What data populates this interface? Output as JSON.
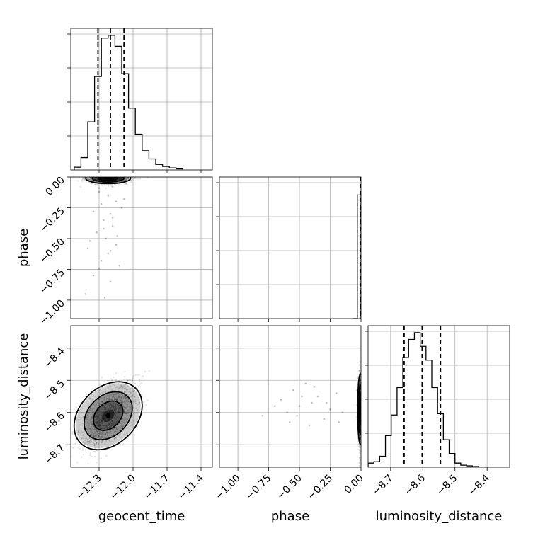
{
  "chart_data": {
    "type": "corner",
    "parameters": [
      "geocent_time",
      "phase",
      "luminosity_distance"
    ],
    "axis_labels": {
      "x": [
        "geocent_time",
        "phase",
        "luminosity_distance"
      ],
      "y": [
        "",
        "phase",
        "luminosity_distance"
      ]
    },
    "ranges": {
      "geocent_time": [
        -12.55,
        -11.3
      ],
      "phase": [
        -1.15,
        0.0
      ],
      "luminosity_distance": [
        -8.77,
        -8.33
      ]
    },
    "ticks": {
      "geocent_time": [
        -12.3,
        -12.0,
        -11.7,
        -11.4
      ],
      "phase": [
        -1.0,
        -0.75,
        -0.5,
        -0.25,
        0.0
      ],
      "luminosity_distance": [
        -8.7,
        -8.6,
        -8.5,
        -8.4
      ]
    },
    "tick_labels": {
      "geocent_time": [
        "−12.3",
        "−12.0",
        "−11.7",
        "−11.4"
      ],
      "phase": [
        "−1.00",
        "−0.75",
        "−0.50",
        "−0.25",
        "0.00"
      ],
      "phase_y": [
        "−1.00",
        "−0.75",
        "−0.50",
        "−0.25",
        "0.00"
      ],
      "luminosity_distance": [
        "−8.7",
        "−8.6",
        "−8.5",
        "−8.4"
      ]
    },
    "grid": true,
    "histograms": {
      "geocent_time": {
        "bin_edges": [
          -12.52,
          -12.46,
          -12.4,
          -12.34,
          -12.28,
          -12.22,
          -12.16,
          -12.1,
          -12.04,
          -11.98,
          -11.92,
          -11.86,
          -11.8,
          -11.74,
          -11.68,
          -11.62,
          -11.56
        ],
        "counts": [
          0.02,
          0.09,
          0.35,
          0.68,
          0.96,
          0.98,
          0.9,
          0.7,
          0.45,
          0.26,
          0.14,
          0.08,
          0.04,
          0.025,
          0.015,
          0.008
        ],
        "quantiles": [
          -12.31,
          -12.2,
          -12.08
        ]
      },
      "phase": {
        "bin_edges": [
          -0.065,
          -0.03,
          0.0
        ],
        "counts": [
          0.0,
          0.9
        ],
        "quantiles": [
          -0.005,
          -0.003,
          -0.001
        ]
      },
      "luminosity_distance": {
        "bin_edges": [
          -8.77,
          -8.752,
          -8.734,
          -8.716,
          -8.698,
          -8.68,
          -8.662,
          -8.644,
          -8.626,
          -8.608,
          -8.59,
          -8.572,
          -8.554,
          -8.536,
          -8.518,
          -8.5,
          -8.482,
          -8.464,
          -8.446,
          -8.428,
          -8.41
        ],
        "counts": [
          0.03,
          0.04,
          0.08,
          0.23,
          0.38,
          0.58,
          0.8,
          0.93,
          0.98,
          0.88,
          0.78,
          0.58,
          0.39,
          0.2,
          0.1,
          0.03,
          0.015,
          0.01,
          0.005,
          0.002
        ],
        "quantiles": [
          -8.658,
          -8.602,
          -8.545
        ]
      }
    },
    "density_2d": {
      "phase_vs_geocent_time": {
        "center": [
          -12.22,
          -0.01
        ],
        "spread": [
          0.09,
          0.02
        ]
      },
      "luminosity_distance_vs_geocent_time": {
        "center": [
          -12.22,
          -8.61
        ],
        "spread": [
          0.12,
          0.05
        ],
        "correlation": 0.6
      },
      "luminosity_distance_vs_phase": {
        "center": [
          -0.005,
          -8.59
        ],
        "spread": [
          0.01,
          0.05
        ]
      }
    },
    "samples": {
      "phase_vs_geocent_time": [
        [
          -12.25,
          -0.05
        ],
        [
          -12.18,
          -0.08
        ],
        [
          -12.3,
          -0.12
        ],
        [
          -12.22,
          -0.15
        ],
        [
          -12.15,
          -0.2
        ],
        [
          -12.28,
          -0.22
        ],
        [
          -12.35,
          -0.28
        ],
        [
          -12.2,
          -0.3
        ],
        [
          -12.1,
          -0.25
        ],
        [
          -12.26,
          -0.35
        ],
        [
          -12.18,
          -0.4
        ],
        [
          -12.32,
          -0.45
        ],
        [
          -12.24,
          -0.5
        ],
        [
          -12.15,
          -0.55
        ],
        [
          -12.4,
          -0.58
        ],
        [
          -12.22,
          -0.62
        ],
        [
          -12.28,
          -0.68
        ],
        [
          -12.12,
          -0.72
        ],
        [
          -12.35,
          -0.8
        ],
        [
          -12.2,
          -0.85
        ],
        [
          -12.42,
          -0.95
        ],
        [
          -12.25,
          -0.98
        ],
        [
          -12.08,
          -0.18
        ],
        [
          -12.3,
          -0.09
        ],
        [
          -12.18,
          -0.33
        ],
        [
          -12.26,
          -0.42
        ],
        [
          -12.14,
          -0.48
        ],
        [
          -12.38,
          -0.52
        ],
        [
          -12.2,
          -0.6
        ],
        [
          -12.3,
          -0.75
        ]
      ],
      "luminosity_distance_vs_phase": [
        [
          -0.45,
          -8.51
        ],
        [
          -0.55,
          -8.53
        ],
        [
          -0.4,
          -8.57
        ],
        [
          -0.6,
          -8.6
        ],
        [
          -0.35,
          -8.55
        ],
        [
          -0.3,
          -8.62
        ],
        [
          -0.5,
          -8.58
        ],
        [
          -0.65,
          -8.56
        ],
        [
          -0.25,
          -8.59
        ],
        [
          -0.42,
          -8.64
        ],
        [
          -0.52,
          -8.61
        ],
        [
          -0.2,
          -8.54
        ],
        [
          -0.38,
          -8.52
        ],
        [
          -0.58,
          -8.63
        ],
        [
          -0.7,
          -8.58
        ],
        [
          -0.28,
          -8.57
        ],
        [
          -0.15,
          -8.6
        ],
        [
          -0.48,
          -8.55
        ],
        [
          -0.8,
          -8.61
        ],
        [
          -0.18,
          -8.63
        ]
      ]
    }
  }
}
